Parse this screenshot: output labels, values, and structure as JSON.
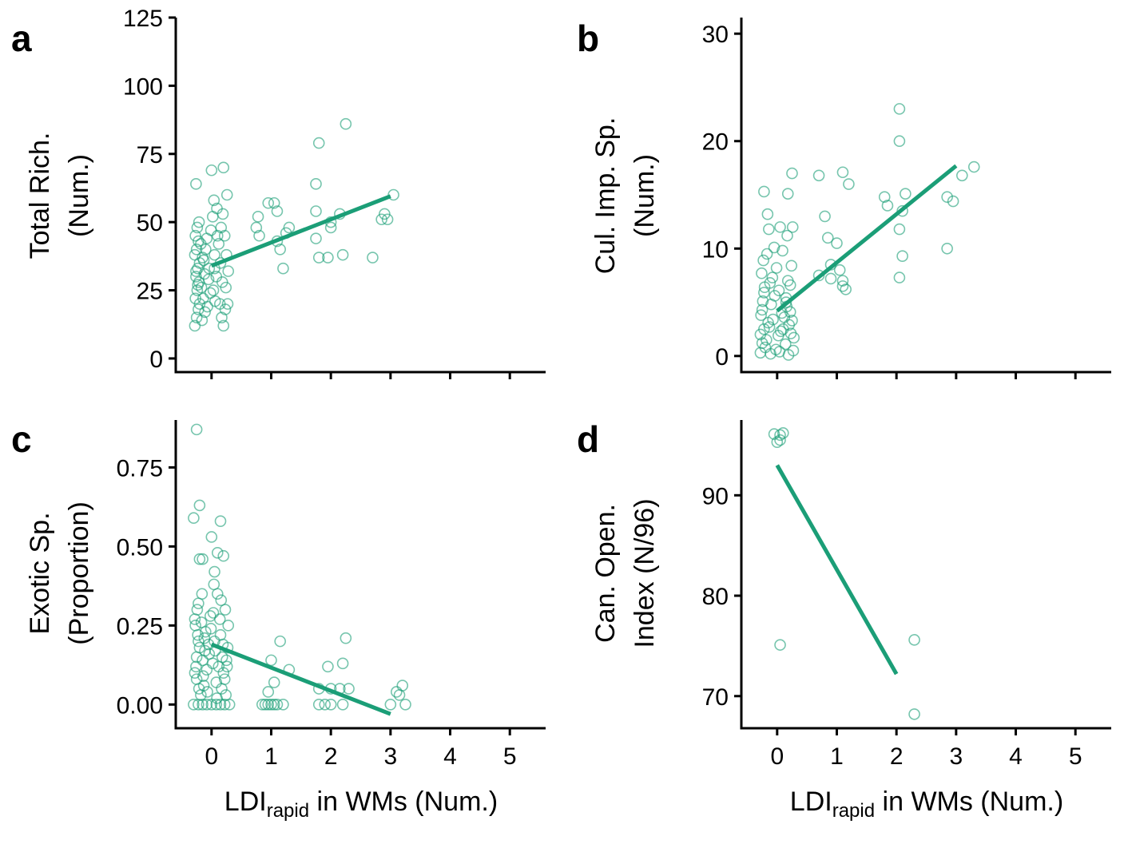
{
  "colors": {
    "series": "#1b9e77",
    "axis": "#000000",
    "background": "#ffffff"
  },
  "shared_xlabel": {
    "main": "LDI",
    "sub": "rapid",
    "rest": " in WMs (Num.)"
  },
  "chart_data": [
    {
      "panel": "a",
      "type": "scatter",
      "ylabel_lines": [
        "Total Rich.",
        "(Num.)"
      ],
      "xlim": [
        -0.6,
        5.6
      ],
      "ylim": [
        -5,
        125
      ],
      "xticks": [
        0,
        1,
        2,
        3,
        4,
        5
      ],
      "yticks": [
        0,
        25,
        50,
        75,
        100,
        125
      ],
      "xticklabels_shown": false,
      "points": [
        [
          -0.28,
          12
        ],
        [
          -0.25,
          15
        ],
        [
          -0.22,
          18
        ],
        [
          -0.27,
          22
        ],
        [
          -0.24,
          25
        ],
        [
          -0.21,
          28
        ],
        [
          -0.26,
          30
        ],
        [
          -0.23,
          33
        ],
        [
          -0.2,
          35
        ],
        [
          -0.28,
          38
        ],
        [
          -0.25,
          40
        ],
        [
          -0.22,
          43
        ],
        [
          -0.27,
          45
        ],
        [
          -0.24,
          48
        ],
        [
          -0.21,
          50
        ],
        [
          -0.26,
          32
        ],
        [
          -0.23,
          27
        ],
        [
          -0.2,
          20
        ],
        [
          -0.18,
          42
        ],
        [
          -0.15,
          37
        ],
        [
          -0.12,
          31
        ],
        [
          -0.17,
          26
        ],
        [
          -0.14,
          22
        ],
        [
          -0.11,
          17
        ],
        [
          -0.16,
          14
        ],
        [
          -0.13,
          36
        ],
        [
          -0.1,
          40
        ],
        [
          -0.08,
          44
        ],
        [
          -0.05,
          29
        ],
        [
          -0.02,
          24
        ],
        [
          -0.07,
          19
        ],
        [
          -0.04,
          33
        ],
        [
          -0.01,
          47
        ],
        [
          0.02,
          52
        ],
        [
          0.05,
          38
        ],
        [
          0.08,
          30
        ],
        [
          0.03,
          25
        ],
        [
          0.06,
          21
        ],
        [
          0.09,
          55
        ],
        [
          0.04,
          58
        ],
        [
          0.12,
          42
        ],
        [
          0.15,
          35
        ],
        [
          0.18,
          28
        ],
        [
          0.14,
          20
        ],
        [
          0.17,
          15
        ],
        [
          0.2,
          12
        ],
        [
          0.16,
          48
        ],
        [
          0.19,
          53
        ],
        [
          0.22,
          45
        ],
        [
          0.25,
          38
        ],
        [
          0.28,
          32
        ],
        [
          0.24,
          26
        ],
        [
          0.27,
          20
        ],
        [
          0.23,
          18
        ],
        [
          0.26,
          60
        ],
        [
          -0.26,
          64
        ],
        [
          0.0,
          69
        ],
        [
          0.2,
          70
        ],
        [
          0.1,
          45
        ],
        [
          0.05,
          33
        ],
        [
          0.75,
          48
        ],
        [
          0.78,
          52
        ],
        [
          0.8,
          45
        ],
        [
          0.95,
          57
        ],
        [
          1.05,
          57
        ],
        [
          1.1,
          54
        ],
        [
          1.1,
          43
        ],
        [
          1.15,
          40
        ],
        [
          1.2,
          33
        ],
        [
          1.25,
          46
        ],
        [
          1.3,
          48
        ],
        [
          1.75,
          64
        ],
        [
          1.75,
          54
        ],
        [
          1.75,
          44
        ],
        [
          1.8,
          37
        ],
        [
          1.8,
          79
        ],
        [
          1.95,
          37
        ],
        [
          2.0,
          48
        ],
        [
          2.0,
          50
        ],
        [
          2.15,
          53
        ],
        [
          2.2,
          38
        ],
        [
          2.25,
          86
        ],
        [
          2.7,
          37
        ],
        [
          2.85,
          51
        ],
        [
          2.9,
          53
        ],
        [
          2.95,
          51
        ],
        [
          3.05,
          60
        ]
      ],
      "fit_line": [
        [
          0.0,
          34
        ],
        [
          3.0,
          59.5
        ]
      ]
    },
    {
      "panel": "b",
      "type": "scatter",
      "ylabel_lines": [
        "Cul. Imp. Sp.",
        "(Num.)"
      ],
      "xlim": [
        -0.6,
        5.6
      ],
      "ylim": [
        -1.5,
        31.5
      ],
      "xticks": [
        0,
        1,
        2,
        3,
        4,
        5
      ],
      "yticks": [
        0,
        10,
        20,
        30
      ],
      "xticklabels_shown": false,
      "points": [
        [
          -0.28,
          0.3
        ],
        [
          -0.25,
          1.2
        ],
        [
          -0.22,
          2.5
        ],
        [
          -0.27,
          3.8
        ],
        [
          -0.24,
          5.1
        ],
        [
          -0.21,
          6.4
        ],
        [
          -0.26,
          7.7
        ],
        [
          -0.23,
          8.9
        ],
        [
          -0.2,
          0.8
        ],
        [
          -0.28,
          2.0
        ],
        [
          -0.25,
          4.3
        ],
        [
          -0.22,
          5.9
        ],
        [
          -0.18,
          1.5
        ],
        [
          -0.15,
          3.1
        ],
        [
          -0.12,
          6.8
        ],
        [
          -0.17,
          9.5
        ],
        [
          -0.14,
          11.8
        ],
        [
          -0.11,
          0.2
        ],
        [
          -0.16,
          13.2
        ],
        [
          -0.13,
          2.7
        ],
        [
          -0.1,
          4.8
        ],
        [
          -0.08,
          7.3
        ],
        [
          -0.05,
          10.1
        ],
        [
          -0.02,
          0.6
        ],
        [
          -0.07,
          3.4
        ],
        [
          -0.04,
          5.6
        ],
        [
          -0.01,
          8.2
        ],
        [
          0.02,
          1.9
        ],
        [
          0.05,
          12.0
        ],
        [
          0.08,
          4.0
        ],
        [
          0.03,
          6.1
        ],
        [
          0.06,
          2.3
        ],
        [
          0.09,
          9.8
        ],
        [
          0.04,
          0.4
        ],
        [
          0.12,
          3.6
        ],
        [
          0.15,
          5.4
        ],
        [
          0.18,
          7.0
        ],
        [
          0.14,
          1.1
        ],
        [
          0.17,
          11.2
        ],
        [
          0.2,
          2.9
        ],
        [
          0.16,
          4.6
        ],
        [
          0.19,
          0.1
        ],
        [
          0.22,
          6.6
        ],
        [
          0.25,
          3.3
        ],
        [
          0.28,
          1.7
        ],
        [
          0.24,
          8.4
        ],
        [
          0.27,
          0.5
        ],
        [
          0.23,
          2.1
        ],
        [
          0.26,
          12.0
        ],
        [
          0.22,
          4.1
        ],
        [
          -0.22,
          15.3
        ],
        [
          0.18,
          15.1
        ],
        [
          0.25,
          17.0
        ],
        [
          0.15,
          5.0
        ],
        [
          0.1,
          2.5
        ],
        [
          0.7,
          16.8
        ],
        [
          0.7,
          7.5
        ],
        [
          0.8,
          13.0
        ],
        [
          0.85,
          11.0
        ],
        [
          0.9,
          8.5
        ],
        [
          1.0,
          10.5
        ],
        [
          1.1,
          17.1
        ],
        [
          1.05,
          8.0
        ],
        [
          1.1,
          6.5
        ],
        [
          1.15,
          6.2
        ],
        [
          1.2,
          16.0
        ],
        [
          1.1,
          7.0
        ],
        [
          0.9,
          7.2
        ],
        [
          1.8,
          14.8
        ],
        [
          1.85,
          14.0
        ],
        [
          2.05,
          23.0
        ],
        [
          2.05,
          20.0
        ],
        [
          2.05,
          11.8
        ],
        [
          2.05,
          7.3
        ],
        [
          2.1,
          9.3
        ],
        [
          2.1,
          13.5
        ],
        [
          2.15,
          15.1
        ],
        [
          2.85,
          10.0
        ],
        [
          2.85,
          14.8
        ],
        [
          2.95,
          14.4
        ],
        [
          3.1,
          16.8
        ],
        [
          3.3,
          17.6
        ]
      ],
      "fit_line": [
        [
          0.0,
          4.2
        ],
        [
          3.0,
          17.7
        ]
      ]
    },
    {
      "panel": "c",
      "type": "scatter",
      "ylabel_lines": [
        "Exotic Sp.",
        "(Proportion)"
      ],
      "xlabel": "LDIrapid in WMs (Num.)",
      "xlim": [
        -0.6,
        5.6
      ],
      "ylim": [
        -0.075,
        0.9
      ],
      "xticks": [
        0,
        1,
        2,
        3,
        4,
        5
      ],
      "yticks": [
        0.0,
        0.25,
        0.5,
        0.75
      ],
      "yticklabels": [
        "0.00",
        "0.25",
        "0.50",
        "0.75"
      ],
      "xticklabels": [
        "0",
        "1",
        "2",
        "3",
        "4",
        "5"
      ],
      "points": [
        [
          -0.3,
          0.0
        ],
        [
          -0.22,
          0.0
        ],
        [
          -0.15,
          0.0
        ],
        [
          -0.08,
          0.0
        ],
        [
          0.0,
          0.0
        ],
        [
          0.08,
          0.0
        ],
        [
          0.15,
          0.0
        ],
        [
          0.22,
          0.0
        ],
        [
          0.3,
          0.0
        ],
        [
          -0.28,
          0.1
        ],
        [
          -0.25,
          0.15
        ],
        [
          -0.22,
          0.2
        ],
        [
          -0.27,
          0.25
        ],
        [
          -0.24,
          0.3
        ],
        [
          -0.21,
          0.05
        ],
        [
          -0.26,
          0.12
        ],
        [
          -0.23,
          0.22
        ],
        [
          -0.2,
          0.18
        ],
        [
          -0.28,
          0.27
        ],
        [
          -0.25,
          0.08
        ],
        [
          -0.22,
          0.32
        ],
        [
          -0.18,
          0.03
        ],
        [
          -0.15,
          0.14
        ],
        [
          -0.12,
          0.21
        ],
        [
          -0.17,
          0.26
        ],
        [
          -0.14,
          0.09
        ],
        [
          -0.11,
          0.17
        ],
        [
          -0.16,
          0.35
        ],
        [
          -0.13,
          0.06
        ],
        [
          -0.1,
          0.23
        ],
        [
          -0.08,
          0.11
        ],
        [
          -0.05,
          0.19
        ],
        [
          -0.02,
          0.28
        ],
        [
          -0.07,
          0.04
        ],
        [
          -0.04,
          0.16
        ],
        [
          -0.01,
          0.24
        ],
        [
          0.02,
          0.13
        ],
        [
          0.05,
          0.2
        ],
        [
          0.08,
          0.07
        ],
        [
          0.03,
          0.29
        ],
        [
          0.06,
          0.17
        ],
        [
          0.09,
          0.02
        ],
        [
          0.04,
          0.38
        ],
        [
          0.12,
          0.12
        ],
        [
          0.15,
          0.22
        ],
        [
          0.18,
          0.15
        ],
        [
          0.14,
          0.27
        ],
        [
          0.17,
          0.05
        ],
        [
          0.2,
          0.1
        ],
        [
          0.16,
          0.33
        ],
        [
          0.19,
          0.19
        ],
        [
          0.22,
          0.08
        ],
        [
          0.25,
          0.14
        ],
        [
          0.28,
          0.25
        ],
        [
          0.24,
          0.03
        ],
        [
          0.27,
          0.18
        ],
        [
          0.23,
          0.3
        ],
        [
          0.26,
          0.12
        ],
        [
          -0.3,
          0.59
        ],
        [
          -0.2,
          0.46
        ],
        [
          -0.2,
          0.63
        ],
        [
          -0.15,
          0.46
        ],
        [
          0.0,
          0.53
        ],
        [
          0.1,
          0.48
        ],
        [
          0.15,
          0.58
        ],
        [
          0.2,
          0.47
        ],
        [
          0.05,
          0.42
        ],
        [
          0.1,
          0.35
        ],
        [
          -0.25,
          0.87
        ],
        [
          0.85,
          0.0
        ],
        [
          0.9,
          0.0
        ],
        [
          0.95,
          0.0
        ],
        [
          1.0,
          0.0
        ],
        [
          1.05,
          0.0
        ],
        [
          1.1,
          0.0
        ],
        [
          1.2,
          0.0
        ],
        [
          0.95,
          0.04
        ],
        [
          1.0,
          0.14
        ],
        [
          1.05,
          0.07
        ],
        [
          1.15,
          0.2
        ],
        [
          1.3,
          0.11
        ],
        [
          1.8,
          0.0
        ],
        [
          1.9,
          0.0
        ],
        [
          2.0,
          0.0
        ],
        [
          2.2,
          0.0
        ],
        [
          1.8,
          0.05
        ],
        [
          1.95,
          0.12
        ],
        [
          2.0,
          0.05
        ],
        [
          2.15,
          0.05
        ],
        [
          2.2,
          0.13
        ],
        [
          2.25,
          0.21
        ],
        [
          2.3,
          0.05
        ],
        [
          3.0,
          0.0
        ],
        [
          3.1,
          0.04
        ],
        [
          3.15,
          0.03
        ],
        [
          3.2,
          0.06
        ],
        [
          3.25,
          0.0
        ]
      ],
      "fit_line": [
        [
          0.0,
          0.19
        ],
        [
          3.0,
          -0.03
        ]
      ]
    },
    {
      "panel": "d",
      "type": "scatter",
      "ylabel_lines": [
        "Can. Open.",
        "Index (N/96)"
      ],
      "xlabel": "LDIrapid in WMs (Num.)",
      "xlim": [
        -0.6,
        5.6
      ],
      "ylim": [
        66.8,
        97.5
      ],
      "xticks": [
        0,
        1,
        2,
        3,
        4,
        5
      ],
      "yticks": [
        70,
        80,
        90
      ],
      "xticklabels": [
        "0",
        "1",
        "2",
        "3",
        "4",
        "5"
      ],
      "points": [
        [
          -0.05,
          96.1
        ],
        [
          0.0,
          95.3
        ],
        [
          0.05,
          96.0
        ],
        [
          0.1,
          96.2
        ],
        [
          0.05,
          95.5
        ],
        [
          0.05,
          75.1
        ],
        [
          2.3,
          75.6
        ],
        [
          2.3,
          68.2
        ]
      ],
      "fit_line": [
        [
          0.0,
          93.0
        ],
        [
          2.0,
          72.2
        ]
      ]
    }
  ]
}
